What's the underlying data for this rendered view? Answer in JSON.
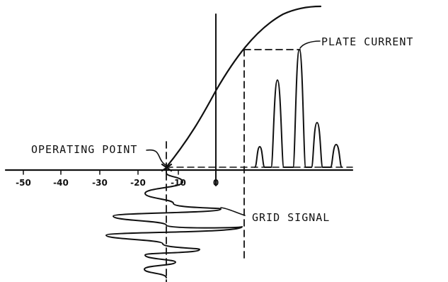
{
  "labels": {
    "plate_current": "PLATE CURRENT",
    "operating_point": "OPERATING POINT",
    "grid_signal": "GRID SIGNAL"
  },
  "axis": {
    "tick_labels": [
      "-50",
      "-40",
      "-30",
      "-20",
      "-10",
      "0"
    ]
  },
  "colors": {
    "ink": "#111111",
    "paper": "#ffffff"
  }
}
